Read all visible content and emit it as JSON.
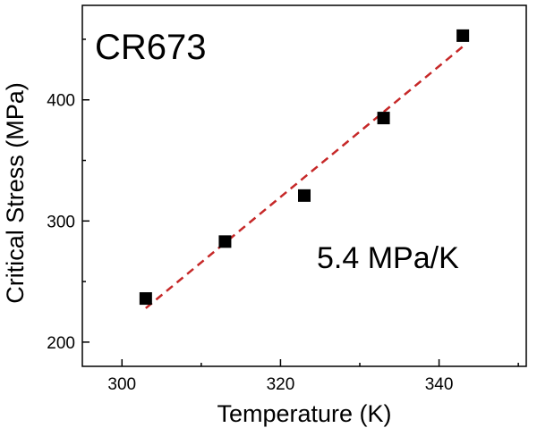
{
  "chart_data": {
    "type": "scatter",
    "title": "",
    "xlabel": "Temperature (K)",
    "ylabel": "Critical Stress (MPa)",
    "xlim": [
      295,
      351
    ],
    "ylim": [
      180,
      478
    ],
    "x_ticks": [
      300,
      320,
      340
    ],
    "x_tick_labels": [
      "300",
      "320",
      "340"
    ],
    "x_minor_ticks": [
      310,
      330,
      350
    ],
    "y_ticks": [
      200,
      300,
      400
    ],
    "y_tick_labels": [
      "200",
      "300",
      "400"
    ],
    "y_minor_ticks": [
      250,
      350,
      450
    ],
    "grid": false,
    "series": [
      {
        "marker": "square",
        "color": "#000000",
        "x": [
          303,
          313,
          323,
          333,
          343
        ],
        "y": [
          236,
          283,
          321,
          385,
          453
        ]
      }
    ],
    "fit_line": {
      "style": "dashed",
      "color": "#c62828",
      "x": [
        303,
        343
      ],
      "y": [
        228,
        444
      ]
    },
    "annotations": {
      "sample": "CR673",
      "slope": "5.4 MPa/K"
    }
  }
}
